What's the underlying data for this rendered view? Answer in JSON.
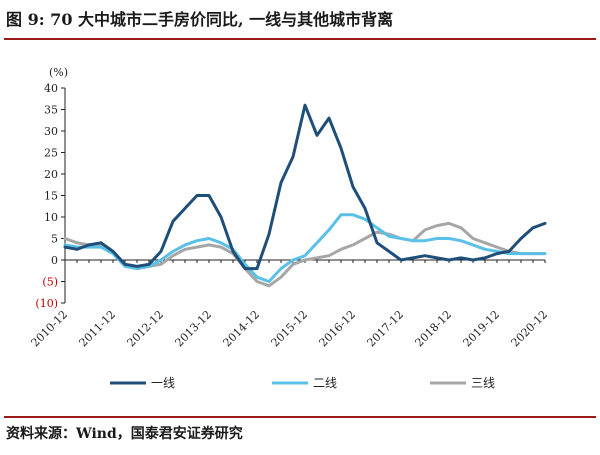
{
  "header": {
    "title": "图 9: 70 大中城市二手房价同比, 一线与其他城市背离"
  },
  "footer": {
    "source": "资料来源：Wind，国泰君安证券研究"
  },
  "chart_data": {
    "type": "line",
    "unit_label": "(%)",
    "ylim": [
      -10,
      40
    ],
    "y_ticks": [
      {
        "value": 40,
        "label": "40"
      },
      {
        "value": 35,
        "label": "35"
      },
      {
        "value": 30,
        "label": "30"
      },
      {
        "value": 25,
        "label": "25"
      },
      {
        "value": 20,
        "label": "20"
      },
      {
        "value": 15,
        "label": "15"
      },
      {
        "value": 10,
        "label": "10"
      },
      {
        "value": 5,
        "label": "5"
      },
      {
        "value": 0,
        "label": "0"
      },
      {
        "value": -5,
        "label": "(5)"
      },
      {
        "value": -10,
        "label": "(10)"
      }
    ],
    "x_tick_labels": [
      "2010-12",
      "2011-12",
      "2012-12",
      "2013-12",
      "2014-12",
      "2015-12",
      "2016-12",
      "2017-12",
      "2018-12",
      "2019-12",
      "2020-12"
    ],
    "x": [
      "2010-12",
      "2011-03",
      "2011-06",
      "2011-09",
      "2011-12",
      "2012-03",
      "2012-06",
      "2012-09",
      "2012-12",
      "2013-03",
      "2013-06",
      "2013-09",
      "2013-12",
      "2014-03",
      "2014-06",
      "2014-09",
      "2014-12",
      "2015-03",
      "2015-06",
      "2015-09",
      "2015-12",
      "2016-03",
      "2016-06",
      "2016-09",
      "2016-12",
      "2017-03",
      "2017-06",
      "2017-09",
      "2017-12",
      "2018-03",
      "2018-06",
      "2018-09",
      "2018-12",
      "2019-03",
      "2019-06",
      "2019-09",
      "2019-12",
      "2020-03",
      "2020-06",
      "2020-09",
      "2020-12"
    ],
    "series": [
      {
        "name": "一线",
        "color": "#1f4e79",
        "values": [
          3,
          2.5,
          3.5,
          4,
          2,
          -1,
          -1.5,
          -1,
          2,
          9,
          12,
          15,
          15,
          10,
          2,
          -2,
          -2,
          6,
          18,
          24,
          36,
          29,
          33,
          26,
          17,
          12,
          4,
          2,
          0,
          0.5,
          1,
          0.5,
          0,
          0.5,
          0,
          0.5,
          1.5,
          2,
          5,
          7.5,
          8.5
        ]
      },
      {
        "name": "二线",
        "color": "#5bc0e8",
        "values": [
          3.5,
          3,
          3,
          3,
          1.5,
          -1.5,
          -2,
          -1.5,
          0,
          2,
          3.5,
          4.5,
          5,
          4,
          2.5,
          -1,
          -4,
          -5,
          -2,
          0,
          1,
          4,
          7,
          10.5,
          10.5,
          9.5,
          7.5,
          5.5,
          5,
          4.5,
          4.5,
          5,
          5,
          4.5,
          3.5,
          2.5,
          2,
          1.5,
          1.5,
          1.5,
          1.5
        ]
      },
      {
        "name": "三线",
        "color": "#a6a6a6",
        "values": [
          5,
          4,
          3.5,
          3.5,
          2,
          -1,
          -2,
          -1.5,
          -1,
          1,
          2.5,
          3,
          3.5,
          3,
          1.5,
          -2,
          -5,
          -6,
          -4,
          -1,
          0,
          0.5,
          1,
          2.5,
          3.5,
          5,
          6.5,
          6,
          5,
          4.5,
          7,
          8,
          8.5,
          7.5,
          5,
          4,
          3,
          2,
          1.5,
          1.5,
          1.5
        ]
      }
    ],
    "legend_position": "bottom",
    "grid": false
  }
}
